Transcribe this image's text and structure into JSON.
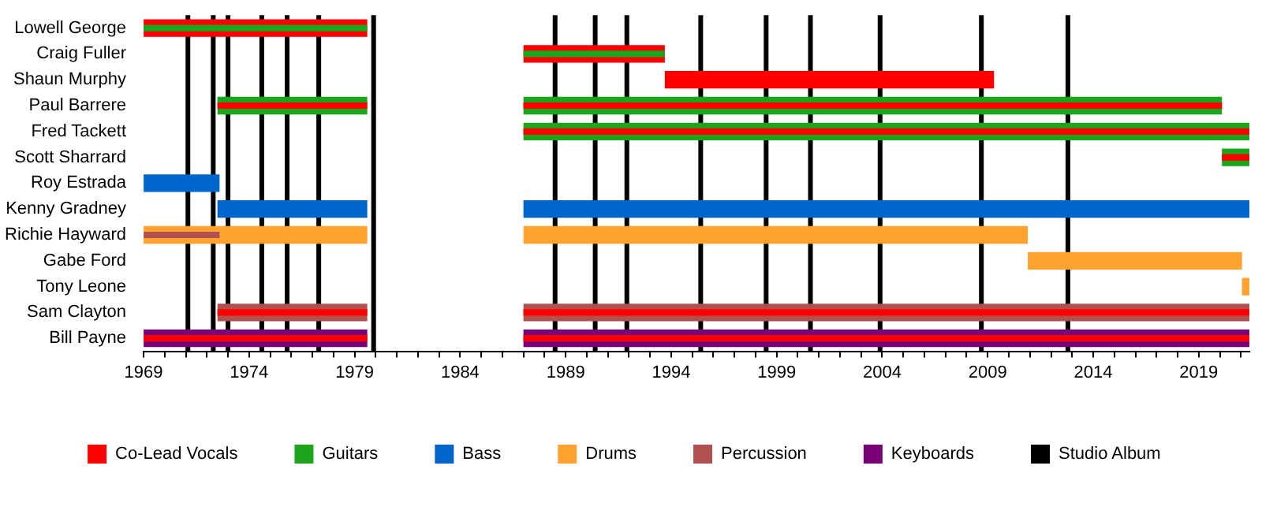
{
  "chart_data": {
    "type": "bar",
    "orientation": "horizontal",
    "legend": "bottom",
    "grid": false,
    "categories": [
      "Lowell George",
      "Craig Fuller",
      "Shaun Murphy",
      "Paul Barrere",
      "Fred Tackett",
      "Scott Sharrard",
      "Roy Estrada",
      "Kenny Gradney",
      "Richie Hayward",
      "Gabe Ford",
      "Tony Leone",
      "Sam Clayton",
      "Bill Payne"
    ],
    "xlim": [
      1969,
      2021.4
    ],
    "xticks": [
      1969,
      {
        "value": 1970,
        "label": null
      },
      {
        "value": 1971,
        "label": null
      },
      {
        "value": 1972,
        "label": null
      },
      {
        "value": 1973,
        "label": null
      },
      1974,
      {
        "value": 1975,
        "label": null
      },
      {
        "value": 1976,
        "label": null
      },
      {
        "value": 1977,
        "label": null
      },
      {
        "value": 1978,
        "label": null
      },
      1979,
      {
        "value": 1980,
        "label": null
      },
      {
        "value": 1981,
        "label": null
      },
      {
        "value": 1982,
        "label": null
      },
      {
        "value": 1983,
        "label": null
      },
      1984,
      {
        "value": 1985,
        "label": null
      },
      {
        "value": 1986,
        "label": null
      },
      {
        "value": 1987,
        "label": null
      },
      {
        "value": 1988,
        "label": null
      },
      1989,
      {
        "value": 1990,
        "label": null
      },
      {
        "value": 1991,
        "label": null
      },
      {
        "value": 1992,
        "label": null
      },
      {
        "value": 1993,
        "label": null
      },
      1994,
      {
        "value": 1995,
        "label": null
      },
      {
        "value": 1996,
        "label": null
      },
      {
        "value": 1997,
        "label": null
      },
      {
        "value": 1998,
        "label": null
      },
      1999,
      {
        "value": 2000,
        "label": null
      },
      {
        "value": 2001,
        "label": null
      },
      {
        "value": 2002,
        "label": null
      },
      {
        "value": 2003,
        "label": null
      },
      2004,
      {
        "value": 2005,
        "label": null
      },
      {
        "value": 2006,
        "label": null
      },
      {
        "value": 2007,
        "label": null
      },
      {
        "value": 2008,
        "label": null
      },
      2009,
      {
        "value": 2010,
        "label": null
      },
      {
        "value": 2011,
        "label": null
      },
      {
        "value": 2012,
        "label": null
      },
      {
        "value": 2013,
        "label": null
      },
      2014,
      {
        "value": 2015,
        "label": null
      },
      {
        "value": 2016,
        "label": null
      },
      {
        "value": 2017,
        "label": null
      },
      {
        "value": 2018,
        "label": null
      },
      2019,
      {
        "value": 2020,
        "label": null
      },
      {
        "value": 2021,
        "label": null
      }
    ],
    "series": [
      {
        "name": "Co-Lead Vocals",
        "color": "#ff0000",
        "base": [
          1969,
          1987,
          1993.7,
          null,
          null,
          null,
          null,
          null,
          null,
          null,
          null,
          null,
          null
        ],
        "values": [
          10.6,
          6.7,
          15.6,
          null,
          null,
          null,
          null,
          null,
          null,
          null,
          null,
          null,
          null
        ]
      },
      {
        "name": "Guitars",
        "color": "#1aa51a",
        "base": [
          null,
          null,
          null,
          1972.5,
          1987,
          2020.1,
          null,
          null,
          null,
          null,
          null,
          null,
          null
        ],
        "values": [
          null,
          null,
          null,
          7.1,
          34.4,
          1.3,
          null,
          null,
          null,
          null,
          null,
          null,
          null
        ]
      },
      {
        "color": "#1aa51a",
        "base": [
          null,
          null,
          null,
          1987,
          null,
          null,
          null,
          null,
          null,
          null,
          null,
          null,
          null
        ],
        "values": [
          null,
          null,
          null,
          33.1,
          null,
          null,
          null,
          null,
          null,
          null,
          null,
          null,
          null
        ]
      },
      {
        "name": "Bass",
        "color": "#0066cc",
        "base": [
          null,
          null,
          null,
          null,
          null,
          null,
          1969,
          1972.5,
          null,
          null,
          null,
          null,
          null
        ],
        "values": [
          null,
          null,
          null,
          null,
          null,
          null,
          3.6,
          7.1,
          null,
          null,
          null,
          null,
          null
        ]
      },
      {
        "color": "#0066cc",
        "base": [
          null,
          null,
          null,
          null,
          null,
          null,
          null,
          1987,
          null,
          null,
          null,
          null,
          null
        ],
        "values": [
          null,
          null,
          null,
          null,
          null,
          null,
          null,
          34.4,
          null,
          null,
          null,
          null,
          null
        ]
      },
      {
        "name": "Drums",
        "color": "#ffa22f",
        "base": [
          null,
          null,
          null,
          null,
          null,
          null,
          null,
          null,
          1969,
          2010.9,
          2021.05,
          null,
          null
        ],
        "values": [
          null,
          null,
          null,
          null,
          null,
          null,
          null,
          null,
          10.6,
          10.15,
          0.35,
          null,
          null
        ]
      },
      {
        "color": "#ffa22f",
        "base": [
          null,
          null,
          null,
          null,
          null,
          null,
          null,
          null,
          1987,
          null,
          null,
          null,
          null
        ],
        "values": [
          null,
          null,
          null,
          null,
          null,
          null,
          null,
          null,
          23.9,
          null,
          null,
          null,
          null
        ]
      },
      {
        "name": "Percussion",
        "color": "#b05050",
        "base": [
          null,
          null,
          null,
          null,
          null,
          null,
          null,
          null,
          null,
          null,
          null,
          1972.5,
          null
        ],
        "values": [
          null,
          null,
          null,
          null,
          null,
          null,
          null,
          null,
          null,
          null,
          null,
          7.1,
          null
        ]
      },
      {
        "color": "#b05050",
        "base": [
          null,
          null,
          null,
          null,
          null,
          null,
          null,
          null,
          null,
          null,
          null,
          1987,
          null
        ],
        "values": [
          null,
          null,
          null,
          null,
          null,
          null,
          null,
          null,
          null,
          null,
          null,
          34.4,
          null
        ]
      },
      {
        "name": "Keyboards",
        "color": "#7a0078",
        "base": [
          null,
          null,
          null,
          null,
          null,
          null,
          null,
          null,
          null,
          null,
          null,
          null,
          1969
        ],
        "values": [
          null,
          null,
          null,
          null,
          null,
          null,
          null,
          null,
          null,
          null,
          null,
          null,
          10.6
        ]
      },
      {
        "color": "#7a0078",
        "base": [
          null,
          null,
          null,
          null,
          null,
          null,
          null,
          null,
          null,
          null,
          null,
          null,
          1987
        ],
        "values": [
          null,
          null,
          null,
          null,
          null,
          null,
          null,
          null,
          null,
          null,
          null,
          null,
          34.4
        ]
      },
      {
        "color": "#1aa51a",
        "base": [
          1969,
          1987,
          null,
          null,
          null,
          null,
          null,
          null,
          null,
          null,
          null,
          null,
          null
        ],
        "values": [
          10.6,
          6.7,
          null,
          null,
          null,
          null,
          null,
          null,
          null,
          null,
          null,
          null,
          null
        ]
      },
      {
        "color": "#ff0000",
        "base": [
          null,
          null,
          null,
          1972.5,
          1987,
          2020.1,
          null,
          null,
          null,
          null,
          null,
          1972.5,
          1969
        ],
        "values": [
          null,
          null,
          null,
          7.1,
          34.4,
          1.3,
          null,
          null,
          null,
          null,
          null,
          7.1,
          10.6
        ]
      },
      {
        "color": "#ff0000",
        "base": [
          null,
          null,
          null,
          1987,
          null,
          null,
          null,
          null,
          null,
          null,
          null,
          1987,
          1987
        ],
        "values": [
          null,
          null,
          null,
          33.1,
          null,
          null,
          null,
          null,
          null,
          null,
          null,
          34.4,
          34.4
        ]
      },
      {
        "color": "#b05050",
        "base": [
          null,
          null,
          null,
          null,
          null,
          null,
          null,
          null,
          1969,
          null,
          null,
          null,
          null
        ],
        "values": [
          null,
          null,
          null,
          null,
          null,
          null,
          null,
          null,
          3.6,
          null,
          null,
          null,
          null
        ]
      }
    ],
    "ref_lines": [
      {
        "axis": "x",
        "value": 1971.1,
        "label": "Studio Album",
        "color": "#000000"
      },
      {
        "axis": "x",
        "value": 1972.3,
        "color": "#000000"
      },
      {
        "axis": "x",
        "value": 1973.0,
        "color": "#000000"
      },
      {
        "axis": "x",
        "value": 1974.6,
        "color": "#000000"
      },
      {
        "axis": "x",
        "value": 1975.8,
        "color": "#000000"
      },
      {
        "axis": "x",
        "value": 1977.3,
        "color": "#000000"
      },
      {
        "axis": "x",
        "value": 1979.9,
        "color": "#000000"
      },
      {
        "axis": "x",
        "value": 1988.5,
        "color": "#000000"
      },
      {
        "axis": "x",
        "value": 1990.4,
        "color": "#000000"
      },
      {
        "axis": "x",
        "value": 1991.9,
        "color": "#000000"
      },
      {
        "axis": "x",
        "value": 1995.4,
        "color": "#000000"
      },
      {
        "axis": "x",
        "value": 1998.5,
        "color": "#000000"
      },
      {
        "axis": "x",
        "value": 2000.6,
        "color": "#000000"
      },
      {
        "axis": "x",
        "value": 2003.9,
        "color": "#000000"
      },
      {
        "axis": "x",
        "value": 2008.7,
        "color": "#000000"
      },
      {
        "axis": "x",
        "value": 2012.8,
        "color": "#000000"
      }
    ]
  }
}
